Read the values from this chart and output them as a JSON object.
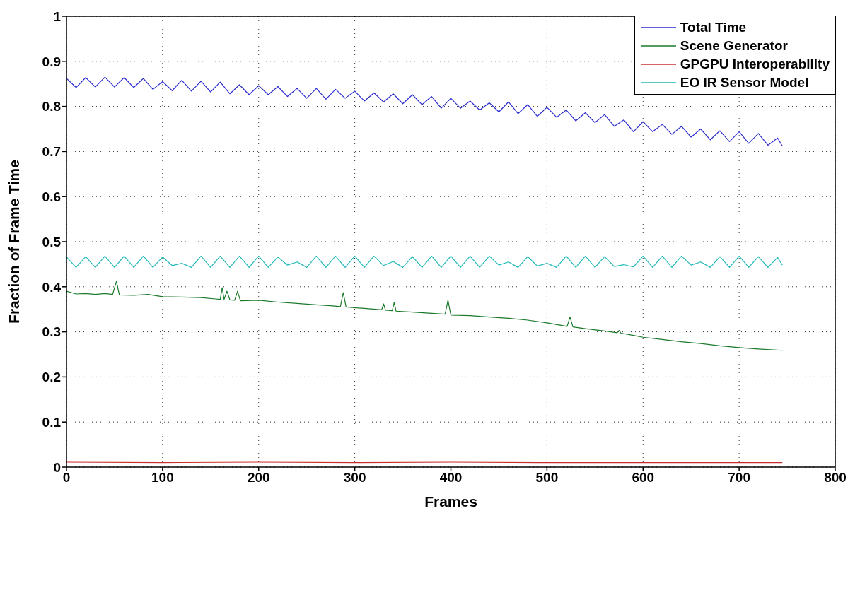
{
  "chart_data": {
    "type": "line",
    "xlabel": "Frames",
    "ylabel": "Fraction of Frame Time",
    "xlim": [
      0,
      800
    ],
    "xticks": [
      0,
      100,
      200,
      300,
      400,
      500,
      600,
      700,
      800
    ],
    "ylim": [
      0,
      1
    ],
    "yticks": [
      0,
      0.1,
      0.2,
      0.3,
      0.4,
      0.5,
      0.6,
      0.7,
      0.8,
      0.9,
      1
    ],
    "grid": true,
    "legend": "top right",
    "series": [
      {
        "name": "Total Time",
        "color": "#2a2ad0",
        "x": [
          0,
          10,
          20,
          30,
          40,
          50,
          60,
          70,
          80,
          90,
          100,
          110,
          120,
          130,
          140,
          150,
          160,
          170,
          180,
          190,
          200,
          210,
          220,
          230,
          240,
          250,
          260,
          270,
          280,
          290,
          300,
          310,
          320,
          330,
          340,
          350,
          360,
          370,
          380,
          390,
          400,
          410,
          420,
          430,
          440,
          450,
          460,
          470,
          480,
          490,
          500,
          510,
          520,
          530,
          540,
          550,
          560,
          570,
          580,
          590,
          600,
          610,
          620,
          630,
          640,
          650,
          660,
          670,
          680,
          690,
          700,
          710,
          720,
          730,
          740,
          745
        ],
        "values": [
          0.862,
          0.842,
          0.864,
          0.843,
          0.865,
          0.843,
          0.864,
          0.842,
          0.862,
          0.838,
          0.855,
          0.835,
          0.858,
          0.834,
          0.856,
          0.832,
          0.854,
          0.828,
          0.848,
          0.826,
          0.846,
          0.826,
          0.844,
          0.822,
          0.84,
          0.818,
          0.84,
          0.816,
          0.838,
          0.818,
          0.834,
          0.812,
          0.83,
          0.81,
          0.828,
          0.806,
          0.826,
          0.804,
          0.822,
          0.796,
          0.818,
          0.796,
          0.812,
          0.792,
          0.808,
          0.788,
          0.81,
          0.784,
          0.804,
          0.778,
          0.798,
          0.776,
          0.792,
          0.768,
          0.786,
          0.764,
          0.782,
          0.756,
          0.77,
          0.744,
          0.766,
          0.744,
          0.76,
          0.738,
          0.756,
          0.732,
          0.75,
          0.726,
          0.746,
          0.722,
          0.744,
          0.718,
          0.74,
          0.714,
          0.73,
          0.712
        ]
      },
      {
        "name": "Scene Generator",
        "color": "#1a7a2a",
        "x": [
          0,
          10,
          20,
          30,
          40,
          48,
          52,
          55,
          70,
          85,
          100,
          120,
          140,
          155,
          160,
          162,
          164,
          167,
          170,
          175,
          178,
          181,
          200,
          220,
          240,
          260,
          275,
          285,
          288,
          291,
          310,
          328,
          330,
          332,
          339,
          341,
          343,
          360,
          380,
          394,
          397,
          400,
          420,
          440,
          460,
          480,
          500,
          521,
          524,
          527,
          540,
          560,
          573,
          575,
          577,
          590,
          600,
          620,
          640,
          660,
          680,
          700,
          720,
          745
        ],
        "values": [
          0.39,
          0.384,
          0.385,
          0.383,
          0.385,
          0.383,
          0.412,
          0.382,
          0.381,
          0.383,
          0.378,
          0.377,
          0.376,
          0.373,
          0.372,
          0.398,
          0.372,
          0.39,
          0.371,
          0.37,
          0.39,
          0.369,
          0.37,
          0.366,
          0.363,
          0.36,
          0.358,
          0.356,
          0.387,
          0.355,
          0.352,
          0.349,
          0.362,
          0.348,
          0.347,
          0.365,
          0.346,
          0.344,
          0.341,
          0.339,
          0.37,
          0.337,
          0.336,
          0.333,
          0.33,
          0.326,
          0.32,
          0.312,
          0.333,
          0.311,
          0.307,
          0.302,
          0.298,
          0.303,
          0.297,
          0.292,
          0.288,
          0.283,
          0.278,
          0.274,
          0.269,
          0.265,
          0.262,
          0.259
        ]
      },
      {
        "name": "GPGPU Interoperability",
        "color": "#c83030",
        "x": [
          0,
          100,
          200,
          300,
          400,
          500,
          600,
          700,
          745
        ],
        "values": [
          0.011,
          0.01,
          0.011,
          0.01,
          0.011,
          0.01,
          0.01,
          0.01,
          0.01
        ]
      },
      {
        "name": "EO IR Sensor Model",
        "color": "#20b8b8",
        "x": [
          0,
          10,
          20,
          30,
          40,
          50,
          60,
          70,
          80,
          90,
          100,
          110,
          120,
          130,
          140,
          150,
          160,
          170,
          180,
          190,
          200,
          210,
          220,
          230,
          240,
          250,
          260,
          270,
          280,
          290,
          300,
          310,
          320,
          330,
          340,
          350,
          360,
          370,
          380,
          390,
          400,
          410,
          420,
          430,
          440,
          450,
          460,
          470,
          480,
          490,
          500,
          510,
          520,
          530,
          540,
          550,
          560,
          570,
          580,
          590,
          600,
          610,
          620,
          630,
          640,
          650,
          660,
          670,
          680,
          690,
          700,
          710,
          720,
          730,
          740,
          745
        ],
        "values": [
          0.466,
          0.443,
          0.467,
          0.443,
          0.468,
          0.443,
          0.468,
          0.443,
          0.468,
          0.443,
          0.466,
          0.447,
          0.452,
          0.443,
          0.468,
          0.443,
          0.468,
          0.443,
          0.468,
          0.443,
          0.468,
          0.443,
          0.466,
          0.448,
          0.455,
          0.443,
          0.468,
          0.443,
          0.468,
          0.443,
          0.468,
          0.443,
          0.468,
          0.447,
          0.456,
          0.443,
          0.467,
          0.443,
          0.468,
          0.443,
          0.468,
          0.443,
          0.468,
          0.443,
          0.468,
          0.448,
          0.455,
          0.443,
          0.467,
          0.446,
          0.452,
          0.443,
          0.468,
          0.443,
          0.468,
          0.443,
          0.467,
          0.445,
          0.449,
          0.444,
          0.468,
          0.443,
          0.468,
          0.443,
          0.468,
          0.448,
          0.455,
          0.443,
          0.467,
          0.443,
          0.468,
          0.443,
          0.467,
          0.443,
          0.465,
          0.448
        ]
      }
    ]
  }
}
